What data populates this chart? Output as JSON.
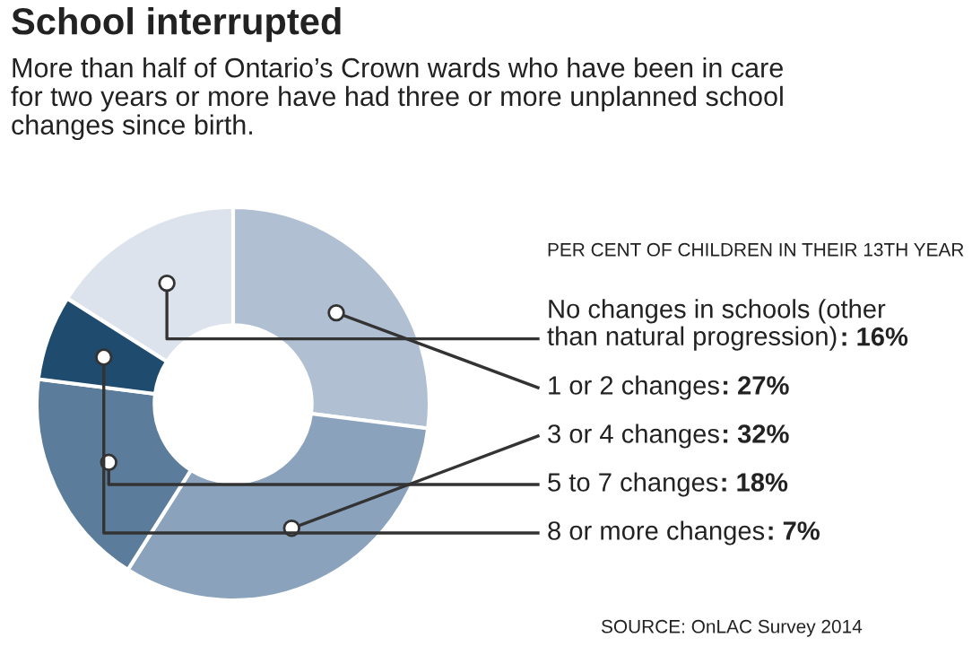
{
  "chart_data": {
    "type": "donut",
    "title": "School interrupted",
    "subtitle": "More than half of Ontario’s Crown wards who have been in care\nfor two years or more have had three or more unplanned school\nchanges since birth.",
    "legend_title": "PER CENT OF CHILDREN IN THEIR 13TH YEAR",
    "categories": [
      "No changes in schools (other\nthan natural progression)",
      "1 or 2 changes",
      "3 or 4 changes",
      "5 to 7 changes",
      "8 or more changes"
    ],
    "values": [
      16,
      27,
      32,
      18,
      7
    ],
    "value_labels": [
      ": 16%",
      ": 27%",
      ": 32%",
      ": 18%",
      ": 7%"
    ],
    "colors": [
      "#dce3ec",
      "#b0c0d2",
      "#8aa2bc",
      "#5c7c9c",
      "#1f4b6e"
    ],
    "annotations": [
      "SOURCE: OnLAC Survey 2014"
    ]
  }
}
